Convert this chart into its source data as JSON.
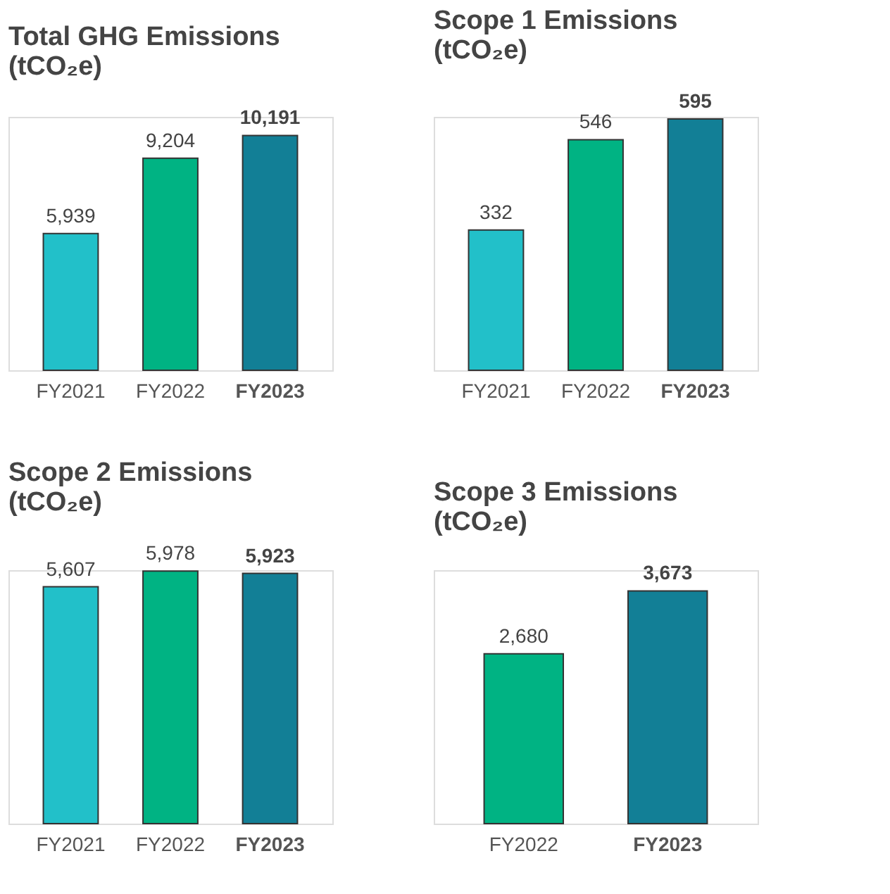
{
  "chart_data": [
    {
      "type": "bar",
      "title": "Total GHG Emissions (tCO₂e)",
      "categories": [
        "FY2021",
        "FY2022",
        "FY2023"
      ],
      "values": [
        5939,
        9204,
        10191
      ],
      "value_labels": [
        "5,939",
        "9,204",
        "10,191"
      ],
      "colors": [
        "#22c0c9",
        "#00b383",
        "#127f96"
      ],
      "tick_labels": "x"
    },
    {
      "type": "bar",
      "title": "Scope 1 Emissions (tCO₂e)",
      "categories": [
        "FY2021",
        "FY2022",
        "FY2023"
      ],
      "values": [
        332,
        546,
        595
      ],
      "value_labels": [
        "332",
        "546",
        "595"
      ],
      "colors": [
        "#22c0c9",
        "#00b383",
        "#127f96"
      ],
      "tick_labels": "x"
    },
    {
      "type": "bar",
      "title": "Scope 2 Emissions (tCO₂e)",
      "categories": [
        "FY2021",
        "FY2022",
        "FY2023"
      ],
      "values": [
        5607,
        5978,
        5923
      ],
      "value_labels": [
        "5,607",
        "5,978",
        "5,923"
      ],
      "colors": [
        "#22c0c9",
        "#00b383",
        "#127f96"
      ],
      "tick_labels": "x"
    },
    {
      "type": "bar",
      "title": "Scope 3 Emissions (tCO₂e)",
      "categories": [
        "FY2022",
        "FY2023"
      ],
      "values": [
        2680,
        3673
      ],
      "value_labels": [
        "2,680",
        "3,673"
      ],
      "colors": [
        "#00b383",
        "#127f96"
      ],
      "tick_labels": "x"
    }
  ]
}
